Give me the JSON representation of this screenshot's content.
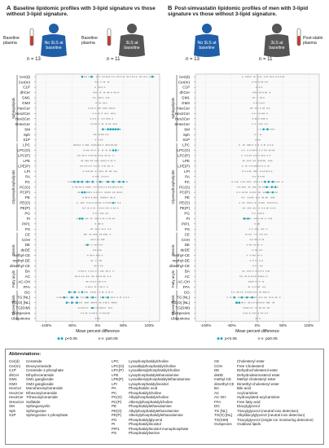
{
  "panels": [
    {
      "letter": "A",
      "title": "Baseline lipidomic profiles with 3-lipid signature vs those without 3-lipid signature.",
      "left_group": {
        "label": "Baseline plasma",
        "badge": "No 3LS at baseline",
        "n": "n = 13",
        "color": "#1f5fa8"
      },
      "right_group": {
        "label": "Baseline plasma",
        "badge": "3LS at baseline",
        "n": "n = 11",
        "color": "#555555"
      }
    },
    {
      "letter": "B",
      "title": "Post-simvastatin lipidomic profiles of men with 3-lipid signature vs those without 3-lipid signature.",
      "left_group": {
        "label": "",
        "badge": "No 3LS at baseline",
        "n": "n = 13",
        "color": "#1f5fa8"
      },
      "right_group": {
        "label": "Post-statin plasma",
        "badge": "3LS at baseline",
        "n": "n = 11",
        "color": "#555555"
      }
    }
  ],
  "chart_data": {
    "type": "scatter",
    "xlabel": "Mean percent difference",
    "x_ticks": [
      "-100%",
      "-50%",
      "0%",
      "50%",
      "100%"
    ],
    "xlim": [
      -120,
      120
    ],
    "categories": [
      "Cer(d)",
      "Cer(m)",
      "C1P",
      "dhCer",
      "GM1",
      "GM3",
      "HexCer",
      "Hex2Cer",
      "Hex3Cer",
      "SHexCer",
      "SM",
      "Sph",
      "S1P",
      "LPC",
      "LPC(O)",
      "LPC(P)",
      "LPE",
      "LPE(P)",
      "LPI",
      "PA",
      "PC",
      "PC(O)",
      "PC(P)",
      "PE",
      "PE(O)",
      "PE(P)",
      "PG",
      "PI",
      "PIP1",
      "PS",
      "CE",
      "COH",
      "DE",
      "deDE",
      "methyl-CE",
      "methyl-DE",
      "dimethyl-CE",
      "BA",
      "AC",
      "AC-OH",
      "FFA",
      "DG",
      "TG [NL]",
      "TG(O) [NL]",
      "TG(SIM)",
      "OxSpecies",
      "Ubiquinone"
    ],
    "groups": [
      {
        "name": "Sphingolipids",
        "start": 0,
        "end": 12
      },
      {
        "name": "Glycerophospholipids",
        "start": 13,
        "end": 29
      },
      {
        "name": "Sterols",
        "start": 30,
        "end": 36
      },
      {
        "name": "Fatty acyls",
        "start": 37,
        "end": 40
      },
      {
        "name": "Glycerolipids",
        "start": 41,
        "end": 46
      }
    ],
    "legend": [
      "p<0.05",
      "p≥0.05"
    ],
    "legend_colors": [
      "#19a9c0",
      "#b3b3b3"
    ],
    "series": [
      {
        "panel": "A",
        "spread": [
          [
            -30,
            110
          ],
          [
            -8,
            25
          ],
          [
            -5,
            15
          ],
          [
            -10,
            40
          ],
          [
            -10,
            25
          ],
          [
            -5,
            20
          ],
          [
            -20,
            35
          ],
          [
            -10,
            35
          ],
          [
            -15,
            30
          ],
          [
            -15,
            40
          ],
          [
            5,
            45
          ],
          [
            -10,
            20
          ],
          [
            -5,
            10
          ],
          [
            -50,
            40
          ],
          [
            -30,
            40
          ],
          [
            -40,
            30
          ],
          [
            -35,
            35
          ],
          [
            -35,
            30
          ],
          [
            -30,
            40
          ],
          [
            -10,
            20
          ],
          [
            -60,
            60
          ],
          [
            -50,
            50
          ],
          [
            -40,
            50
          ],
          [
            -30,
            35
          ],
          [
            -40,
            45
          ],
          [
            -30,
            40
          ],
          [
            -10,
            20
          ],
          [
            -40,
            35
          ],
          [
            -5,
            10
          ],
          [
            -15,
            25
          ],
          [
            -30,
            25
          ],
          [
            -15,
            15
          ],
          [
            -25,
            10
          ],
          [
            -10,
            10
          ],
          [
            -20,
            10
          ],
          [
            -15,
            10
          ],
          [
            -10,
            10
          ],
          [
            -40,
            30
          ],
          [
            -45,
            25
          ],
          [
            -25,
            15
          ],
          [
            -25,
            20
          ],
          [
            -60,
            30
          ],
          [
            -80,
            60
          ],
          [
            -60,
            40
          ],
          [
            -40,
            30
          ],
          [
            -35,
            25
          ],
          [
            -5,
            5
          ]
        ],
        "sig": [
          [
            -12,
            -30,
            106
          ],
          [],
          [],
          [],
          [],
          [],
          [],
          [],
          [],
          [],
          [
            10,
            20,
            30,
            40,
            25,
            35
          ],
          [],
          [],
          [],
          [
            30,
            35
          ],
          [],
          [],
          [],
          [],
          [],
          [
            -45,
            -38,
            -30,
            -20,
            -10,
            5,
            20,
            30,
            42,
            50
          ],
          [],
          [
            -30,
            -25
          ],
          [],
          [
            30
          ],
          [],
          [],
          [
            -30,
            -35
          ],
          [],
          [],
          [],
          [],
          [
            -20
          ],
          [],
          [],
          [],
          [],
          [],
          [],
          [],
          [],
          [
            -55,
            -45,
            -30
          ],
          [
            -65,
            -50,
            -40,
            -20,
            -10,
            10,
            20
          ],
          [
            -60,
            -50,
            -40
          ],
          [
            -10
          ],
          [],
          []
        ]
      },
      {
        "panel": "B",
        "spread": [
          [
            -30,
            55
          ],
          [
            -10,
            20
          ],
          [
            -5,
            10
          ],
          [
            -10,
            25
          ],
          [
            -10,
            15
          ],
          [
            -10,
            15
          ],
          [
            -15,
            25
          ],
          [
            -10,
            20
          ],
          [
            -10,
            20
          ],
          [
            -10,
            20
          ],
          [
            0,
            35
          ],
          [
            -5,
            10
          ],
          [
            -5,
            5
          ],
          [
            -35,
            30
          ],
          [
            -30,
            35
          ],
          [
            -30,
            25
          ],
          [
            -30,
            30
          ],
          [
            -30,
            25
          ],
          [
            -30,
            30
          ],
          [
            -10,
            15
          ],
          [
            -50,
            50
          ],
          [
            -40,
            40
          ],
          [
            -40,
            40
          ],
          [
            -30,
            35
          ],
          [
            -35,
            40
          ],
          [
            -30,
            35
          ],
          [
            -10,
            15
          ],
          [
            -30,
            30
          ],
          [
            -5,
            5
          ],
          [
            -15,
            20
          ],
          [
            -25,
            20
          ],
          [
            -15,
            15
          ],
          [
            -20,
            10
          ],
          [
            -10,
            10
          ],
          [
            -20,
            10
          ],
          [
            -15,
            10
          ],
          [
            -10,
            10
          ],
          [
            -30,
            25
          ],
          [
            -35,
            20
          ],
          [
            -20,
            15
          ],
          [
            -20,
            15
          ],
          [
            -50,
            25
          ],
          [
            -60,
            45
          ],
          [
            -45,
            35
          ],
          [
            -30,
            25
          ],
          [
            -30,
            20
          ],
          [
            -5,
            5
          ]
        ],
        "sig": [
          [],
          [],
          [],
          [],
          [],
          [],
          [],
          [],
          [],
          [],
          [
            12,
            20
          ],
          [],
          [],
          [],
          [],
          [],
          [],
          [],
          [],
          [],
          [
            15,
            22,
            30
          ],
          [
            18,
            28,
            35
          ],
          [
            20,
            30
          ],
          [],
          [],
          [],
          [],
          [
            -25,
            -18
          ],
          [],
          [],
          [],
          [],
          [],
          [],
          [],
          [],
          [],
          [],
          [],
          [],
          [],
          [],
          [
            -45,
            -30,
            -20,
            -10
          ],
          [
            -40,
            -35
          ],
          [],
          [],
          []
        ]
      }
    ]
  },
  "abbreviations": {
    "title": "Abbreviations:",
    "col1": [
      [
        "Cer(d)",
        "Ceramide"
      ],
      [
        "Cer(m)",
        "Deoxyceramide"
      ],
      [
        "C1P",
        "Ceramide-1-phosphate"
      ],
      [
        "dhCer",
        "Dihydroceramide"
      ],
      [
        "GM1",
        "GM1 ganglioside"
      ],
      [
        "GM3",
        "GM3 ganglioside"
      ],
      [
        "HexCer",
        "Monohexosylceramide"
      ],
      [
        "Hex2Cer",
        "Dihexosylceramide"
      ],
      [
        "Hex3Cer",
        "Trihexosylceramide"
      ],
      [
        "SHexCer",
        "Sulfatide"
      ],
      [
        "SM",
        "Sphingomyelin"
      ],
      [
        "Sph",
        "Sphingosine"
      ],
      [
        "S1P",
        "Sphingosine-1-phosphate"
      ]
    ],
    "col2": [
      [
        "LPC",
        "Lysophosphatidylcholine"
      ],
      [
        "LPC(O)",
        "Lysoalkylphosphatidylcholine"
      ],
      [
        "LPC(P)",
        "Lysoalkenylphosphatidylcholine"
      ],
      [
        "LPE",
        "Lysophosphatidylethanolamine"
      ],
      [
        "LPE(P)",
        "Lysoalkenylphosphatidylethanolamine"
      ],
      [
        "LPI",
        "Lysophosphatidylinositol"
      ],
      [
        "PA",
        "Phosphatidic acid"
      ],
      [
        "PC",
        "Phosphatidylcholine"
      ],
      [
        "PC(O)",
        "Alkylphosphatidylcholine"
      ],
      [
        "PC(P)",
        "Alkenylphosphatidylcholine"
      ],
      [
        "PE",
        "Phosphatidylethanolamine"
      ],
      [
        "PE(O)",
        "Alkylphosphatidylethanolamine"
      ],
      [
        "PE(P)",
        "Alkenylphosphatidylethanolamine"
      ],
      [
        "PG",
        "Phosphatidylglycerol"
      ],
      [
        "PI",
        "Phosphatidylinositol"
      ],
      [
        "PIP1",
        "Phosphatidylinositol monophosphate"
      ],
      [
        "PS",
        "Phosphatidylserine"
      ]
    ],
    "col3": [
      [
        "CE",
        "Cholesteryl ester"
      ],
      [
        "COH",
        "Free Cholesterol"
      ],
      [
        "DE",
        "Dehydrocholesterol ester"
      ],
      [
        "deDE",
        "Dehydrodesmosterol ester"
      ],
      [
        "methyl-CE",
        "Methyl-cholesteryl ester"
      ],
      [
        "dimethyl-CE",
        "Dimethyl-cholesteryl ester"
      ],
      [
        "BA",
        "Bile acid"
      ],
      [
        "AC",
        "Acylcarnitine"
      ],
      [
        "AC-OH",
        "Hydroxylated acylcarnitine"
      ],
      [
        "FFA",
        "Free fatty acid"
      ],
      [
        "DG",
        "Diacylglycerol"
      ],
      [
        "TG [NL]",
        "Triacylglycerol (neutral loss detection)"
      ],
      [
        "TG(O) [NL]",
        "Alkyldiacylglycerol (neutral loss detection)"
      ],
      [
        "TG(SIM)",
        "Triacylglycerol (single ion monitoring detection)"
      ],
      [
        "OxSpecies",
        "Oxidised lipids"
      ]
    ]
  }
}
